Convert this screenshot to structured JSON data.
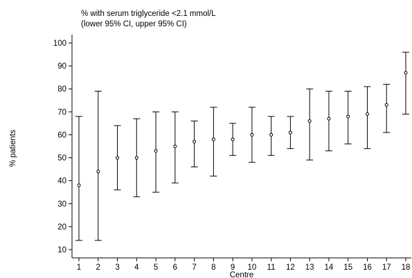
{
  "chart_data": {
    "type": "scatter",
    "title": "% with serum triglyceride <2.1 mmol/L",
    "subtitle": "(lower 95% CI, upper 95% CI)",
    "xlabel": "Centre",
    "ylabel": "% patients",
    "categories": [
      "1",
      "2",
      "3",
      "4",
      "5",
      "6",
      "7",
      "8",
      "9",
      "10",
      "11",
      "12",
      "13",
      "14",
      "15",
      "16",
      "17",
      "18"
    ],
    "yticks": [
      "10",
      "20",
      "30",
      "40",
      "50",
      "60",
      "70",
      "80",
      "90",
      "100"
    ],
    "ylim": [
      10,
      100
    ],
    "grid": false,
    "series": [
      {
        "values": [
          38,
          44,
          50,
          50,
          53,
          55,
          57,
          58,
          58,
          60,
          60,
          61,
          66,
          67,
          68,
          69,
          73,
          87
        ],
        "lower": [
          14,
          14,
          36,
          33,
          35,
          39,
          46,
          42,
          51,
          48,
          51,
          54,
          49,
          53,
          56,
          54,
          61,
          69
        ],
        "upper": [
          68,
          79,
          64,
          67,
          70,
          70,
          66,
          72,
          65,
          72,
          68,
          68,
          80,
          79,
          79,
          81,
          82,
          96
        ]
      }
    ]
  }
}
